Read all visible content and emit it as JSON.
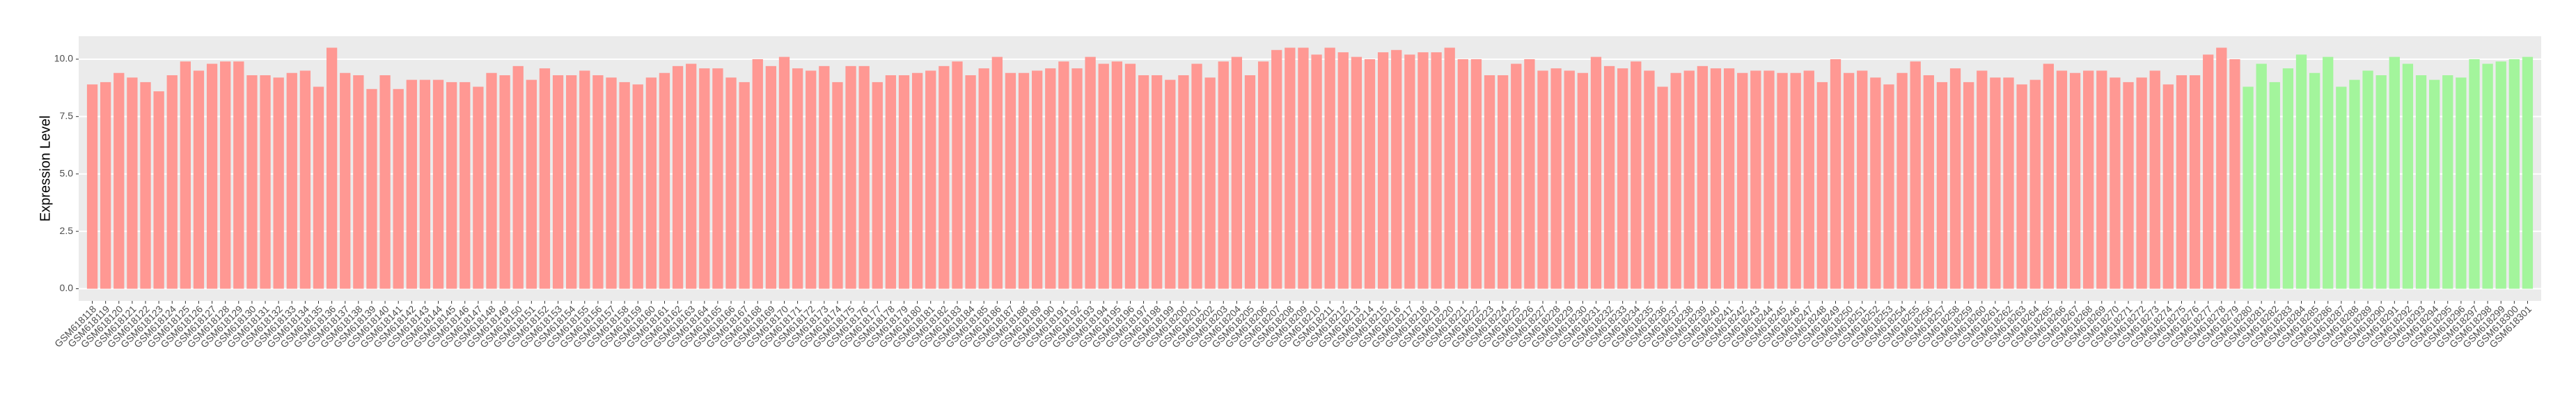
{
  "chart_data": {
    "type": "bar",
    "ylabel": "Expression Level",
    "categories": [
      "GSM618118",
      "GSM618119",
      "GSM618120",
      "GSM618121",
      "GSM618122",
      "GSM618123",
      "GSM618124",
      "GSM618125",
      "GSM618126",
      "GSM618127",
      "GSM618128",
      "GSM618129",
      "GSM618130",
      "GSM618131",
      "GSM618132",
      "GSM618133",
      "GSM618134",
      "GSM618135",
      "GSM618136",
      "GSM618137",
      "GSM618138",
      "GSM618139",
      "GSM618140",
      "GSM618141",
      "GSM618142",
      "GSM618143",
      "GSM618144",
      "GSM618145",
      "GSM618146",
      "GSM618147",
      "GSM618148",
      "GSM618149",
      "GSM618150",
      "GSM618151",
      "GSM618152",
      "GSM618153",
      "GSM618154",
      "GSM618155",
      "GSM618156",
      "GSM618157",
      "GSM618158",
      "GSM618159",
      "GSM618160",
      "GSM618161",
      "GSM618162",
      "GSM618163",
      "GSM618164",
      "GSM618165",
      "GSM618166",
      "GSM618167",
      "GSM618168",
      "GSM618169",
      "GSM618170",
      "GSM618171",
      "GSM618172",
      "GSM618173",
      "GSM618174",
      "GSM618175",
      "GSM618176",
      "GSM618177",
      "GSM618178",
      "GSM618179",
      "GSM618180",
      "GSM618181",
      "GSM618182",
      "GSM618183",
      "GSM618184",
      "GSM618185",
      "GSM618186",
      "GSM618187",
      "GSM618188",
      "GSM618189",
      "GSM618190",
      "GSM618191",
      "GSM618192",
      "GSM618193",
      "GSM618194",
      "GSM618195",
      "GSM618196",
      "GSM618197",
      "GSM618198",
      "GSM618199",
      "GSM618200",
      "GSM618201",
      "GSM618202",
      "GSM618203",
      "GSM618204",
      "GSM618205",
      "GSM618206",
      "GSM618207",
      "GSM618208",
      "GSM618209",
      "GSM618210",
      "GSM618211",
      "GSM618212",
      "GSM618213",
      "GSM618214",
      "GSM618215",
      "GSM618216",
      "GSM618217",
      "GSM618218",
      "GSM618219",
      "GSM618220",
      "GSM618221",
      "GSM618222",
      "GSM618223",
      "GSM618224",
      "GSM618225",
      "GSM618226",
      "GSM618227",
      "GSM618228",
      "GSM618229",
      "GSM618230",
      "GSM618231",
      "GSM618232",
      "GSM618233",
      "GSM618234",
      "GSM618235",
      "GSM618236",
      "GSM618237",
      "GSM618238",
      "GSM618239",
      "GSM618240",
      "GSM618241",
      "GSM618242",
      "GSM618243",
      "GSM618244",
      "GSM618245",
      "GSM618246",
      "GSM618247",
      "GSM618248",
      "GSM618249",
      "GSM618250",
      "GSM618251",
      "GSM618252",
      "GSM618253",
      "GSM618254",
      "GSM618255",
      "GSM618256",
      "GSM618257",
      "GSM618258",
      "GSM618259",
      "GSM618260",
      "GSM618261",
      "GSM618262",
      "GSM618263",
      "GSM618264",
      "GSM618265",
      "GSM618266",
      "GSM618267",
      "GSM618268",
      "GSM618269",
      "GSM618270",
      "GSM618271",
      "GSM618272",
      "GSM618273",
      "GSM618274",
      "GSM618275",
      "GSM618276",
      "GSM618277",
      "GSM618278",
      "GSM618279",
      "GSM618280",
      "GSM618281",
      "GSM618282",
      "GSM618283",
      "GSM618284",
      "GSM618285",
      "GSM618286",
      "GSM618287",
      "GSM618288",
      "GSM618289",
      "GSM618290",
      "GSM618291",
      "GSM618292",
      "GSM618293",
      "GSM618294",
      "GSM618295",
      "GSM618296",
      "GSM618297",
      "GSM618298",
      "GSM618299",
      "GSM618300",
      "GSM618301"
    ],
    "values": [
      8.9,
      9.0,
      9.4,
      9.2,
      9.0,
      8.6,
      9.3,
      9.9,
      9.5,
      9.8,
      9.9,
      9.9,
      9.3,
      9.3,
      9.2,
      9.4,
      9.5,
      8.8,
      10.5,
      9.4,
      9.3,
      8.7,
      9.3,
      8.7,
      9.1,
      9.1,
      9.1,
      9.0,
      9.0,
      8.8,
      9.4,
      9.3,
      9.7,
      9.1,
      9.6,
      9.3,
      9.3,
      9.5,
      9.3,
      9.2,
      9.0,
      8.9,
      9.2,
      9.4,
      9.7,
      9.8,
      9.6,
      9.6,
      9.2,
      9.0,
      10.0,
      9.7,
      10.1,
      9.6,
      9.5,
      9.7,
      9.0,
      9.7,
      9.7,
      9.0,
      9.3,
      9.3,
      9.4,
      9.5,
      9.7,
      9.9,
      9.3,
      9.6,
      10.1,
      9.4,
      9.4,
      9.5,
      9.6,
      9.9,
      9.6,
      10.1,
      9.8,
      9.9,
      9.8,
      9.3,
      9.3,
      9.1,
      9.3,
      9.8,
      9.2,
      9.9,
      10.1,
      9.3,
      9.9,
      10.4,
      10.5,
      10.5,
      10.2,
      10.5,
      10.3,
      10.1,
      10.0,
      10.3,
      10.4,
      10.2,
      10.3,
      10.3,
      10.5,
      10.0,
      10.0,
      9.3,
      9.3,
      9.8,
      10.0,
      9.5,
      9.6,
      9.5,
      9.4,
      10.1,
      9.7,
      9.6,
      9.9,
      9.5,
      8.8,
      9.4,
      9.5,
      9.7,
      9.6,
      9.6,
      9.4,
      9.5,
      9.5,
      9.4,
      9.4,
      9.5,
      9.0,
      10.0,
      9.4,
      9.5,
      9.2,
      8.9,
      9.4,
      9.9,
      9.3,
      9.0,
      9.6,
      9.0,
      9.5,
      9.2,
      9.2,
      8.9,
      9.1,
      9.8,
      9.5,
      9.4,
      9.5,
      9.5,
      9.2,
      9.0,
      9.2,
      9.5,
      8.9,
      9.3,
      9.3,
      10.2,
      10.5,
      10.0,
      8.8,
      9.8,
      9.0,
      9.6,
      10.2,
      9.4,
      10.1,
      8.8,
      9.1,
      9.5,
      9.3,
      10.1,
      9.8,
      9.3,
      9.1,
      9.3,
      9.2,
      10.0,
      9.8,
      9.9,
      10.0,
      10.1
    ],
    "colors": [
      "#ff9893",
      "#ff9893",
      "#ff9893",
      "#ff9893",
      "#ff9893",
      "#ff9893",
      "#ff9893",
      "#ff9893",
      "#ff9893",
      "#ff9893",
      "#ff9893",
      "#ff9893",
      "#ff9893",
      "#ff9893",
      "#ff9893",
      "#ff9893",
      "#ff9893",
      "#ff9893",
      "#ff9893",
      "#ff9893",
      "#ff9893",
      "#ff9893",
      "#ff9893",
      "#ff9893",
      "#ff9893",
      "#ff9893",
      "#ff9893",
      "#ff9893",
      "#ff9893",
      "#ff9893",
      "#ff9893",
      "#ff9893",
      "#ff9893",
      "#ff9893",
      "#ff9893",
      "#ff9893",
      "#ff9893",
      "#ff9893",
      "#ff9893",
      "#ff9893",
      "#ff9893",
      "#ff9893",
      "#ff9893",
      "#ff9893",
      "#ff9893",
      "#ff9893",
      "#ff9893",
      "#ff9893",
      "#ff9893",
      "#ff9893",
      "#ff9893",
      "#ff9893",
      "#ff9893",
      "#ff9893",
      "#ff9893",
      "#ff9893",
      "#ff9893",
      "#ff9893",
      "#ff9893",
      "#ff9893",
      "#ff9893",
      "#ff9893",
      "#ff9893",
      "#ff9893",
      "#ff9893",
      "#ff9893",
      "#ff9893",
      "#ff9893",
      "#ff9893",
      "#ff9893",
      "#ff9893",
      "#ff9893",
      "#ff9893",
      "#ff9893",
      "#ff9893",
      "#ff9893",
      "#ff9893",
      "#ff9893",
      "#ff9893",
      "#ff9893",
      "#ff9893",
      "#ff9893",
      "#ff9893",
      "#ff9893",
      "#ff9893",
      "#ff9893",
      "#ff9893",
      "#ff9893",
      "#ff9893",
      "#ff9893",
      "#ff9893",
      "#ff9893",
      "#ff9893",
      "#ff9893",
      "#ff9893",
      "#ff9893",
      "#ff9893",
      "#ff9893",
      "#ff9893",
      "#ff9893",
      "#ff9893",
      "#ff9893",
      "#ff9893",
      "#ff9893",
      "#ff9893",
      "#ff9893",
      "#ff9893",
      "#ff9893",
      "#ff9893",
      "#ff9893",
      "#ff9893",
      "#ff9893",
      "#ff9893",
      "#ff9893",
      "#ff9893",
      "#ff9893",
      "#ff9893",
      "#ff9893",
      "#ff9893",
      "#ff9893",
      "#ff9893",
      "#ff9893",
      "#ff9893",
      "#ff9893",
      "#ff9893",
      "#ff9893",
      "#ff9893",
      "#ff9893",
      "#ff9893",
      "#ff9893",
      "#ff9893",
      "#ff9893",
      "#ff9893",
      "#ff9893",
      "#ff9893",
      "#ff9893",
      "#ff9893",
      "#ff9893",
      "#ff9893",
      "#ff9893",
      "#ff9893",
      "#ff9893",
      "#ff9893",
      "#ff9893",
      "#ff9893",
      "#ff9893",
      "#ff9893",
      "#ff9893",
      "#ff9893",
      "#ff9893",
      "#ff9893",
      "#ff9893",
      "#ff9893",
      "#ff9893",
      "#ff9893",
      "#ff9893",
      "#ff9893",
      "#ff9893",
      "#ff9893",
      "#ff9893",
      "#ff9893",
      "#ff9893",
      "#a3f59c",
      "#a3f59c",
      "#a3f59c",
      "#a3f59c",
      "#a3f59c",
      "#a3f59c",
      "#a3f59c",
      "#a3f59c",
      "#a3f59c",
      "#a3f59c",
      "#a3f59c",
      "#a3f59c",
      "#a3f59c",
      "#a3f59c",
      "#a3f59c",
      "#a3f59c",
      "#a3f59c",
      "#a3f59c",
      "#a3f59c",
      "#a3f59c",
      "#a3f59c",
      "#a3f59c"
    ],
    "ylim": [
      -0.53,
      11.0
    ],
    "yticks": [
      {
        "value": 0,
        "label": "0.0"
      },
      {
        "value": 2.5,
        "label": "2.5"
      },
      {
        "value": 5,
        "label": "5.0"
      },
      {
        "value": 7.5,
        "label": "7.5"
      },
      {
        "value": 10,
        "label": "10.0"
      }
    ],
    "grid": true
  }
}
